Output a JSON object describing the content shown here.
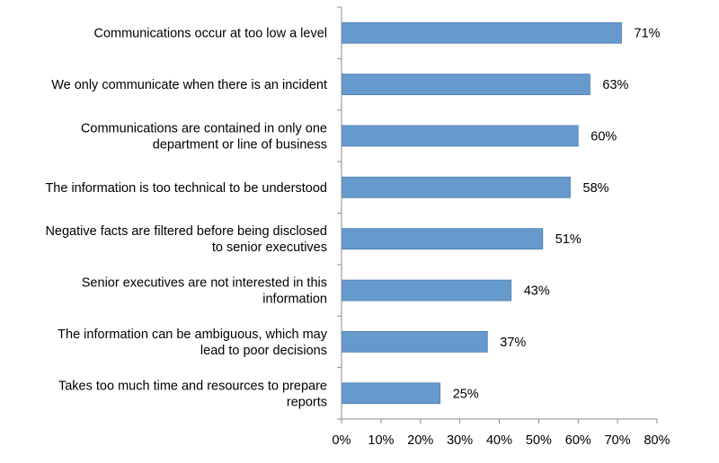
{
  "chart_data": {
    "type": "bar",
    "orientation": "horizontal",
    "categories": [
      [
        "Communications occur at too low a level"
      ],
      [
        "We only communicate when there is an incident"
      ],
      [
        "Communications are contained in only one",
        "department or line of business"
      ],
      [
        "The information is too technical to be understood"
      ],
      [
        "Negative facts are filtered before being disclosed",
        "to senior executives"
      ],
      [
        "Senior executives are not interested in this",
        "information"
      ],
      [
        "The information can be ambiguous, which may",
        "lead to poor decisions"
      ],
      [
        "Takes too much time and resources to prepare",
        "reports"
      ]
    ],
    "values": [
      71,
      63,
      60,
      58,
      51,
      43,
      37,
      25
    ],
    "value_labels": [
      "71%",
      "63%",
      "60%",
      "58%",
      "51%",
      "43%",
      "37%",
      "25%"
    ],
    "xlim": [
      0,
      80
    ],
    "x_ticks": [
      0,
      10,
      20,
      30,
      40,
      50,
      60,
      70,
      80
    ],
    "x_tick_labels": [
      "0%",
      "10%",
      "20%",
      "30%",
      "40%",
      "50%",
      "60%",
      "70%",
      "80%"
    ],
    "bar_color": "#6699CC",
    "bar_edge_color": "#4F7FB0",
    "axis_color": "#8C8C8C",
    "grid": false,
    "legend": "none"
  }
}
